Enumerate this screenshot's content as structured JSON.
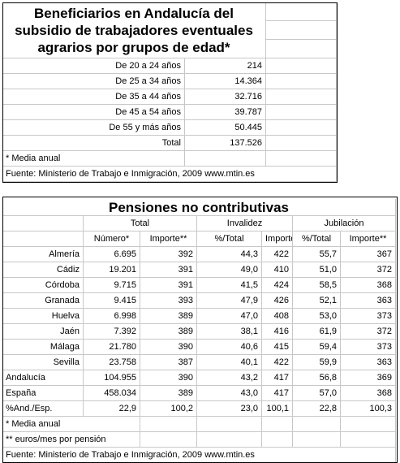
{
  "table1": {
    "title_lines": [
      "Beneficiarios en Andalucía del",
      "subsidio de trabajadores eventuales",
      "agrarios por grupos de edad*"
    ],
    "rows": [
      [
        "De 20 a 24 años",
        "214"
      ],
      [
        "De 25 a 34 años",
        "14.364"
      ],
      [
        "De 35 a 44 años",
        "32.716"
      ],
      [
        "De 45 a 54 años",
        "39.787"
      ],
      [
        "De 55 y más años",
        "50.445"
      ],
      [
        "Total",
        "137.526"
      ]
    ],
    "note": "* Media anual",
    "source": "Fuente: Ministerio de Trabajo e Inmigración, 2009  www.mtin.es"
  },
  "table2": {
    "title": "Pensiones no contributivas",
    "groups": [
      "Total",
      "Invalidez",
      "Jubilación"
    ],
    "subheaders": [
      "Número*",
      "Importe**",
      "%/Total",
      "Importe**",
      "%/Total",
      "Importe**"
    ],
    "rows": [
      [
        "Almería",
        "6.695",
        "392",
        "44,3",
        "422",
        "55,7",
        "367"
      ],
      [
        "Cádiz",
        "19.201",
        "391",
        "49,0",
        "410",
        "51,0",
        "372"
      ],
      [
        "Córdoba",
        "9.715",
        "391",
        "41,5",
        "424",
        "58,5",
        "368"
      ],
      [
        "Granada",
        "9.415",
        "393",
        "47,9",
        "426",
        "52,1",
        "363"
      ],
      [
        "Huelva",
        "6.998",
        "389",
        "47,0",
        "408",
        "53,0",
        "373"
      ],
      [
        "Jaén",
        "7.392",
        "389",
        "38,1",
        "416",
        "61,9",
        "372"
      ],
      [
        "Málaga",
        "21.780",
        "390",
        "40,6",
        "415",
        "59,4",
        "373"
      ],
      [
        "Sevilla",
        "23.758",
        "387",
        "40,1",
        "422",
        "59,9",
        "363"
      ],
      [
        "Andalucía",
        "104.955",
        "390",
        "43,2",
        "417",
        "56,8",
        "369"
      ],
      [
        "España",
        "458.034",
        "389",
        "43,0",
        "417",
        "57,0",
        "368"
      ],
      [
        "%And./Esp.",
        "22,9",
        "100,2",
        "23,0",
        "100,1",
        "22,8",
        "100,3"
      ]
    ],
    "notes": [
      "* Media anual",
      "** euros/mes por pensión"
    ],
    "source": "Fuente: Ministerio de Trabajo e Inmigración, 2009  www.mtin.es"
  }
}
